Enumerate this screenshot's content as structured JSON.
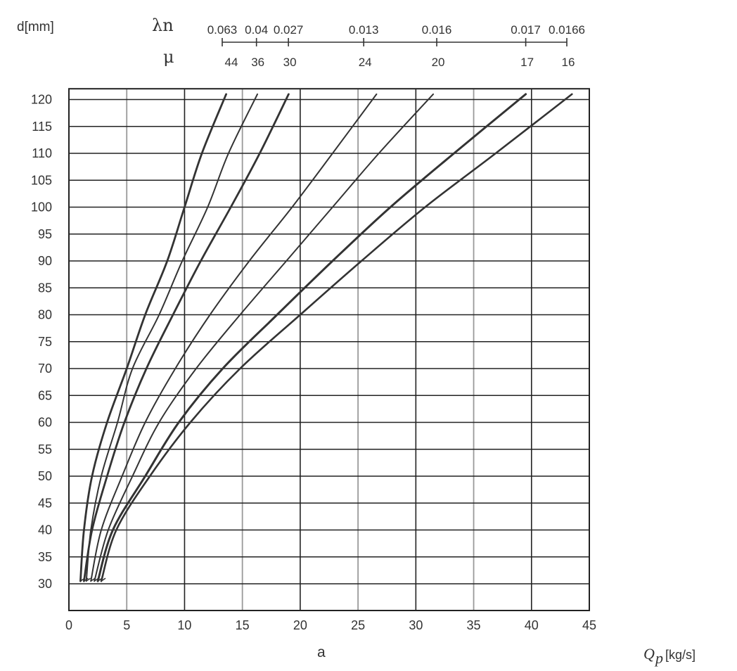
{
  "chart_data": {
    "type": "line",
    "ylabel": "d[mm]",
    "xlabel": "a",
    "x_unit_symbol": "Q",
    "x_unit_subscript": "p",
    "x_unit_text": "[kg/s]",
    "top_scale_1_symbol": "λn",
    "top_scale_2_symbol": "μ",
    "xlim": [
      0,
      45
    ],
    "ylim": [
      25,
      122
    ],
    "x_ticks": [
      "0",
      "5",
      "10",
      "15",
      "20",
      "25",
      "30",
      "35",
      "40",
      "45"
    ],
    "y_ticks": [
      "30",
      "35",
      "40",
      "45",
      "50",
      "55",
      "60",
      "65",
      "70",
      "75",
      "80",
      "85",
      "90",
      "95",
      "100",
      "105",
      "110",
      "115",
      "120"
    ],
    "grid": true,
    "lambda_n_marks": [
      {
        "label": "0.063",
        "x": 0
      },
      {
        "label": "0.04",
        "x": 1.5
      },
      {
        "label": "0.027",
        "x": 2.9
      },
      {
        "label": "0.013",
        "x": 6.2
      },
      {
        "label": "0.016",
        "x": 9.4
      },
      {
        "label": "0.017",
        "x": 13.3
      },
      {
        "label": "0.0166",
        "x": 15.1
      }
    ],
    "mu_labels": [
      "44",
      "36",
      "30",
      "24",
      "20",
      "17",
      "16"
    ],
    "series": [
      {
        "values": [
          [
            1.0,
            30.5
          ],
          [
            1.3,
            40
          ],
          [
            2.0,
            50
          ],
          [
            3.3,
            60
          ],
          [
            5.0,
            70
          ],
          [
            6.6,
            80
          ],
          [
            8.5,
            90
          ],
          [
            10.0,
            100
          ],
          [
            11.5,
            110
          ],
          [
            13.6,
            121
          ]
        ]
      },
      {
        "values": [
          [
            1.5,
            30.5
          ],
          [
            1.9,
            40
          ],
          [
            2.8,
            50
          ],
          [
            4.2,
            60
          ],
          [
            5.5,
            70
          ],
          [
            7.8,
            80
          ],
          [
            9.8,
            90
          ],
          [
            12.0,
            100
          ],
          [
            13.8,
            110
          ],
          [
            16.3,
            121
          ]
        ]
      },
      {
        "values": [
          [
            1.3,
            30.5
          ],
          [
            2.0,
            40
          ],
          [
            3.3,
            50
          ],
          [
            4.8,
            60
          ],
          [
            6.7,
            70
          ],
          [
            9.0,
            80
          ],
          [
            11.4,
            90
          ],
          [
            14.0,
            100
          ],
          [
            16.5,
            110
          ],
          [
            19.0,
            121
          ]
        ]
      },
      {
        "values": [
          [
            1.9,
            30.5
          ],
          [
            2.8,
            40
          ],
          [
            4.6,
            50
          ],
          [
            6.6,
            60
          ],
          [
            9.2,
            70
          ],
          [
            12.2,
            80
          ],
          [
            15.6,
            90
          ],
          [
            19.3,
            100
          ],
          [
            22.8,
            110
          ],
          [
            26.6,
            121
          ]
        ]
      },
      {
        "values": [
          [
            2.2,
            30.5
          ],
          [
            3.4,
            40
          ],
          [
            5.5,
            50
          ],
          [
            7.8,
            60
          ],
          [
            11.0,
            70
          ],
          [
            14.8,
            80
          ],
          [
            18.8,
            90
          ],
          [
            22.8,
            100
          ],
          [
            26.8,
            110
          ],
          [
            31.5,
            121
          ]
        ]
      },
      {
        "values": [
          [
            2.5,
            30.5
          ],
          [
            3.8,
            40
          ],
          [
            6.6,
            50
          ],
          [
            9.5,
            60
          ],
          [
            13.3,
            70
          ],
          [
            18.0,
            80
          ],
          [
            22.8,
            90
          ],
          [
            27.8,
            100
          ],
          [
            33.3,
            110
          ],
          [
            39.5,
            121
          ]
        ]
      },
      {
        "values": [
          [
            2.8,
            30.5
          ],
          [
            4.1,
            40
          ],
          [
            7.0,
            50
          ],
          [
            10.5,
            60
          ],
          [
            14.8,
            70
          ],
          [
            20.0,
            80
          ],
          [
            25.3,
            90
          ],
          [
            30.8,
            100
          ],
          [
            36.9,
            110
          ],
          [
            43.5,
            121
          ]
        ]
      }
    ]
  }
}
